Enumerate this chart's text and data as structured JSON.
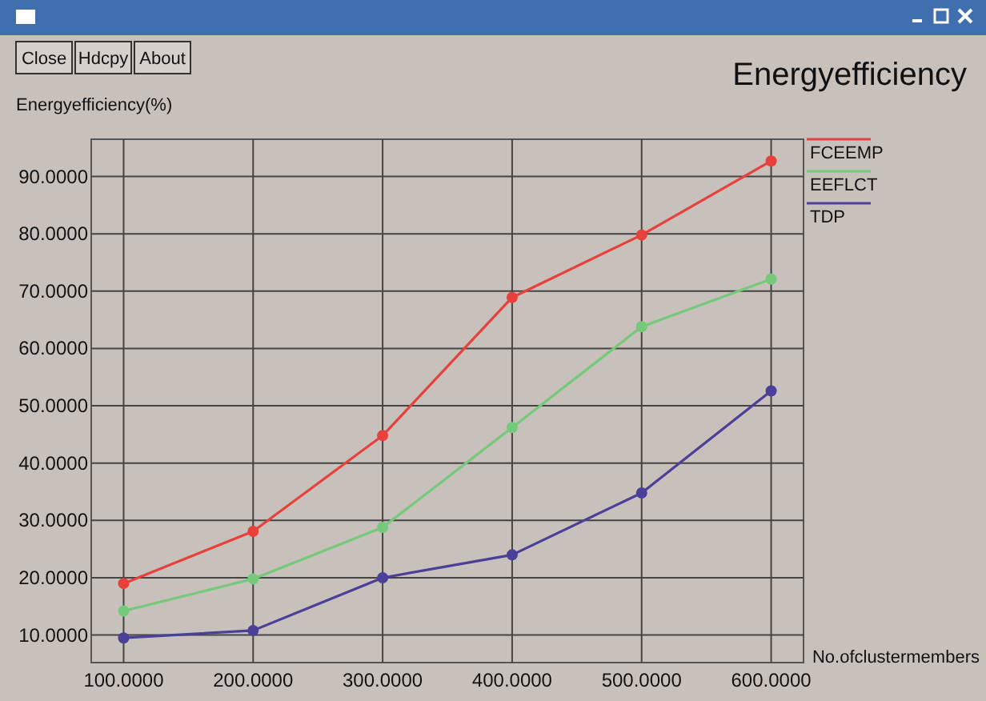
{
  "chart_data": {
    "type": "line",
    "title": "Energyefficiency",
    "ylabel": "Energyefficiency(%)",
    "xlabel": "No.ofclustermembers",
    "annotations": [
      "Close",
      "Hdcpy",
      "About"
    ],
    "x": [
      100,
      200,
      300,
      400,
      500,
      600
    ],
    "series": [
      {
        "name": "FCEEMP",
        "color": "#e8413c",
        "values": [
          19.0,
          28.1,
          44.8,
          68.9,
          79.8,
          92.7
        ]
      },
      {
        "name": "EEFLCT",
        "color": "#74c97a",
        "values": [
          14.2,
          19.8,
          28.8,
          46.2,
          63.8,
          72.1
        ]
      },
      {
        "name": "TDP",
        "color": "#4a3f99",
        "values": [
          9.5,
          10.8,
          20.0,
          24.0,
          34.8,
          52.6
        ]
      }
    ],
    "xlim": [
      75,
      625
    ],
    "ylim": [
      5.2,
      96.5
    ],
    "xticks": [
      {
        "value": 100,
        "label": "100.0000"
      },
      {
        "value": 200,
        "label": "200.0000"
      },
      {
        "value": 300,
        "label": "300.0000"
      },
      {
        "value": 400,
        "label": "400.0000"
      },
      {
        "value": 500,
        "label": "500.0000"
      },
      {
        "value": 600,
        "label": "600.0000"
      }
    ],
    "yticks": [
      {
        "value": 10,
        "label": "10.0000"
      },
      {
        "value": 20,
        "label": "20.0000"
      },
      {
        "value": 30,
        "label": "30.0000"
      },
      {
        "value": 40,
        "label": "40.0000"
      },
      {
        "value": 50,
        "label": "50.0000"
      },
      {
        "value": 60,
        "label": "60.0000"
      },
      {
        "value": 70,
        "label": "70.0000"
      },
      {
        "value": 80,
        "label": "80.0000"
      },
      {
        "value": 90,
        "label": "90.0000"
      }
    ],
    "grid": true,
    "legend": "top right",
    "marker": "circle",
    "line_style": "solid"
  }
}
